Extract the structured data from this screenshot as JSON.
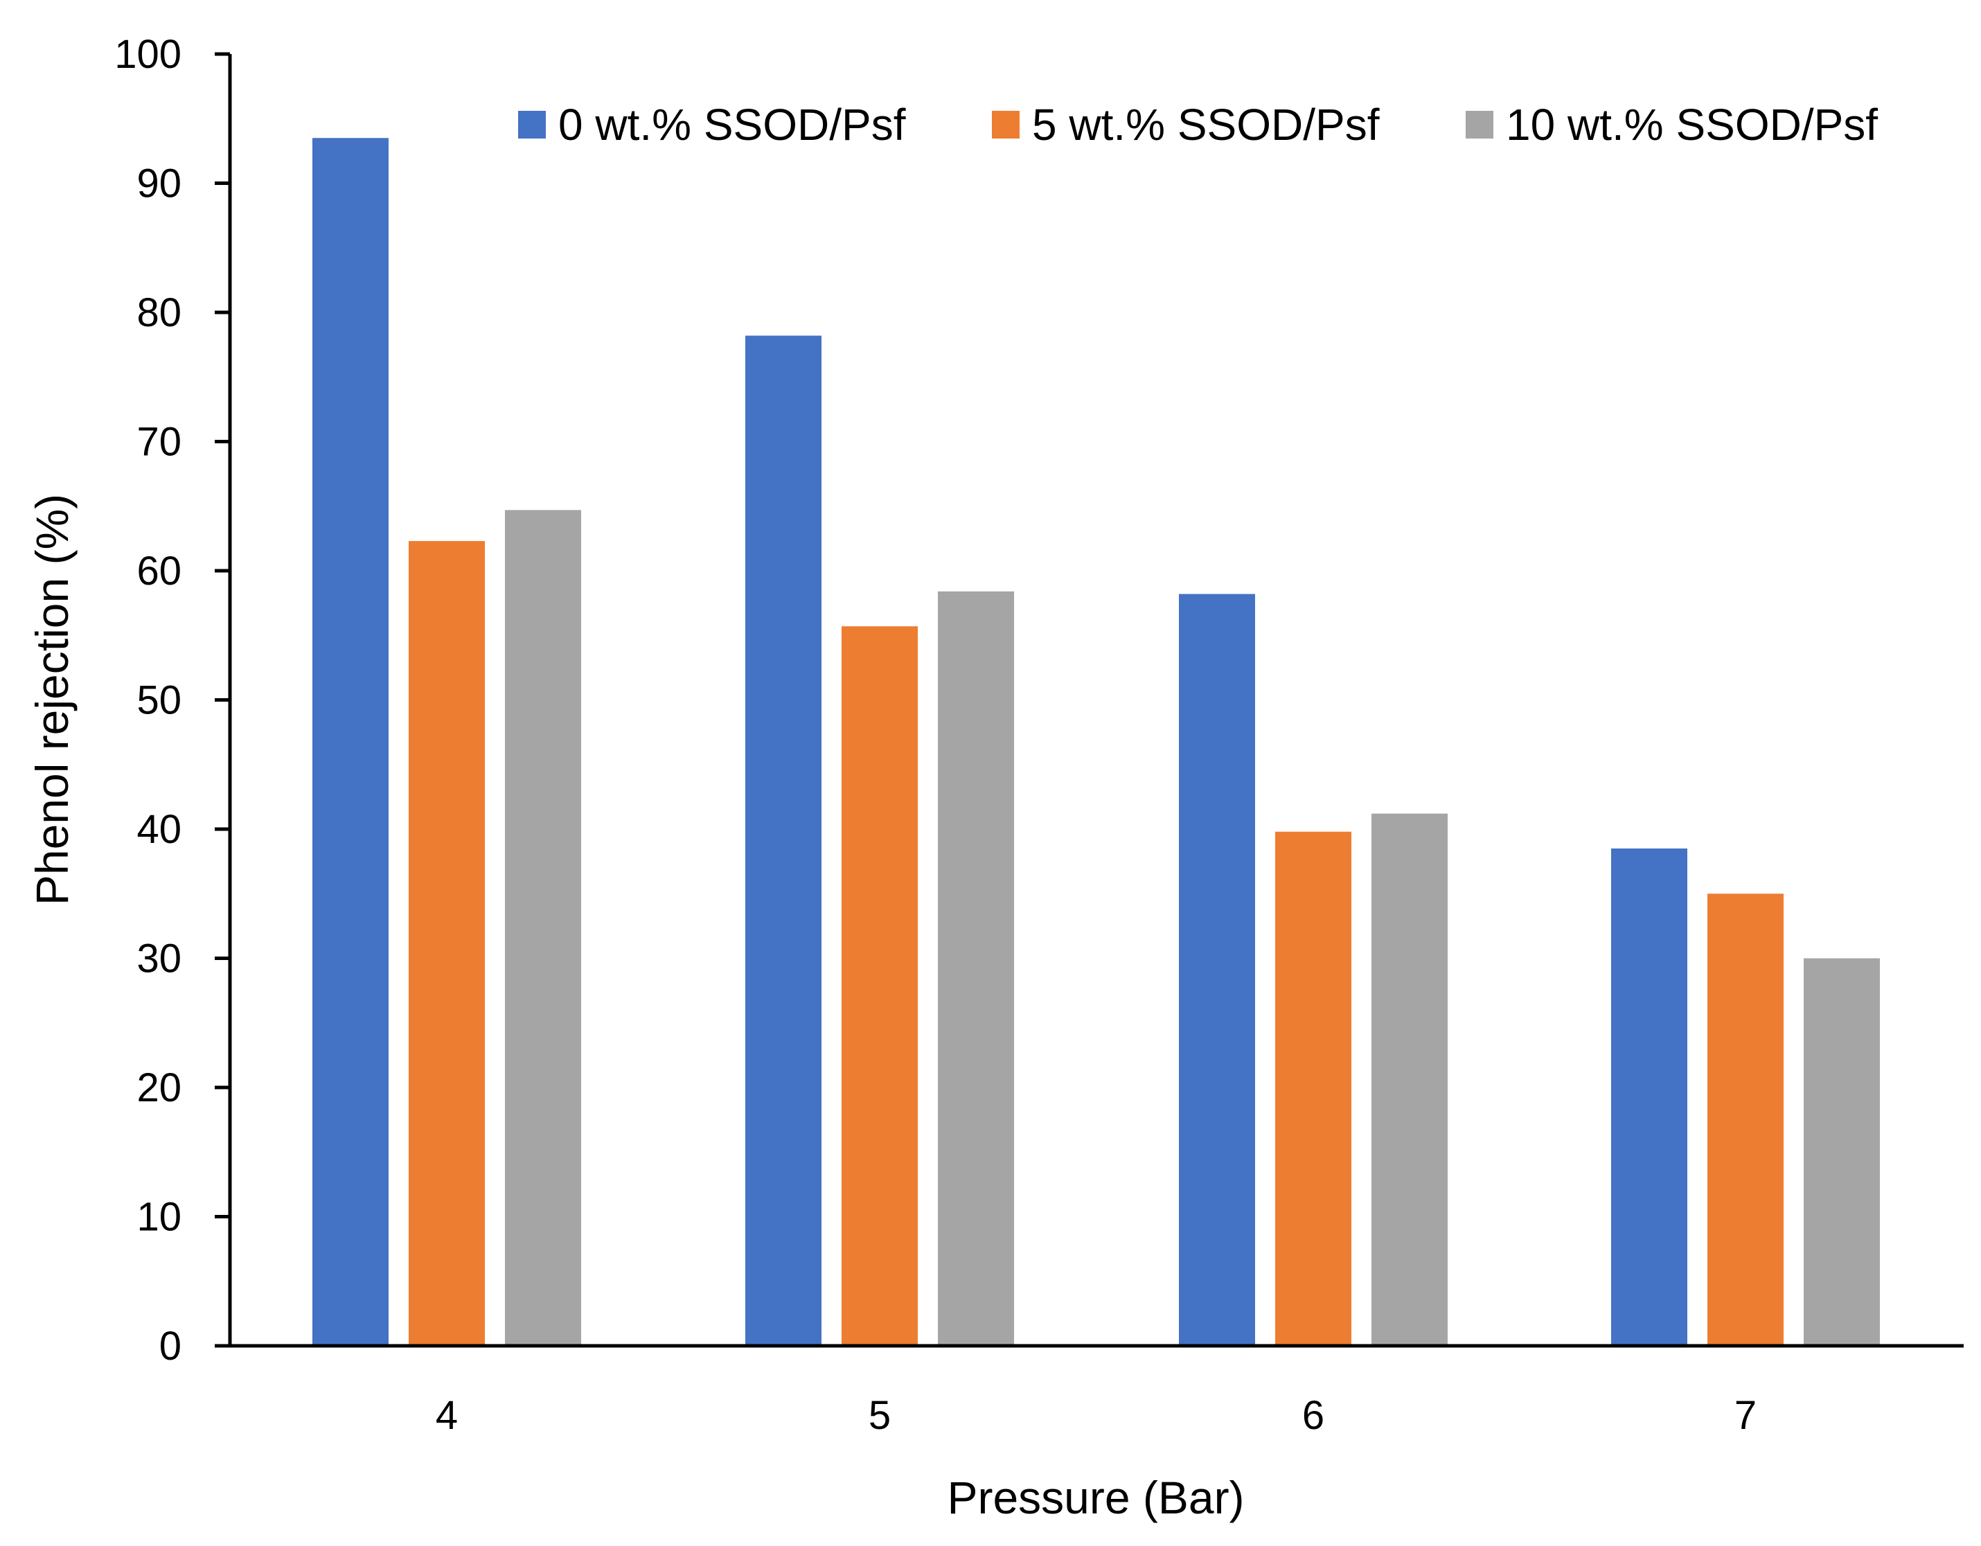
{
  "chart_data": {
    "type": "bar",
    "title": "",
    "xlabel": "Pressure (Bar)",
    "ylabel": "Phenol rejection (%)",
    "categories": [
      "4",
      "5",
      "6",
      "7"
    ],
    "series": [
      {
        "name": "0 wt.% SSOD/Psf",
        "color": "#4472C4",
        "values": [
          93.5,
          78.2,
          58.2,
          38.5
        ]
      },
      {
        "name": "5 wt.% SSOD/Psf",
        "color": "#ED7D31",
        "values": [
          62.3,
          55.7,
          39.8,
          35.0
        ]
      },
      {
        "name": "10 wt.% SSOD/Psf",
        "color": "#A5A5A5",
        "values": [
          64.7,
          58.4,
          41.2,
          30.0
        ]
      }
    ],
    "ylim": [
      0,
      100
    ],
    "yticks": [
      0,
      10,
      20,
      30,
      40,
      50,
      60,
      70,
      80,
      90,
      100
    ],
    "yticks_labels": [
      "0",
      "10",
      "20",
      "30",
      "40",
      "50",
      "60",
      "70",
      "80",
      "90",
      "100"
    ],
    "grid": false,
    "legend_position": "top"
  }
}
